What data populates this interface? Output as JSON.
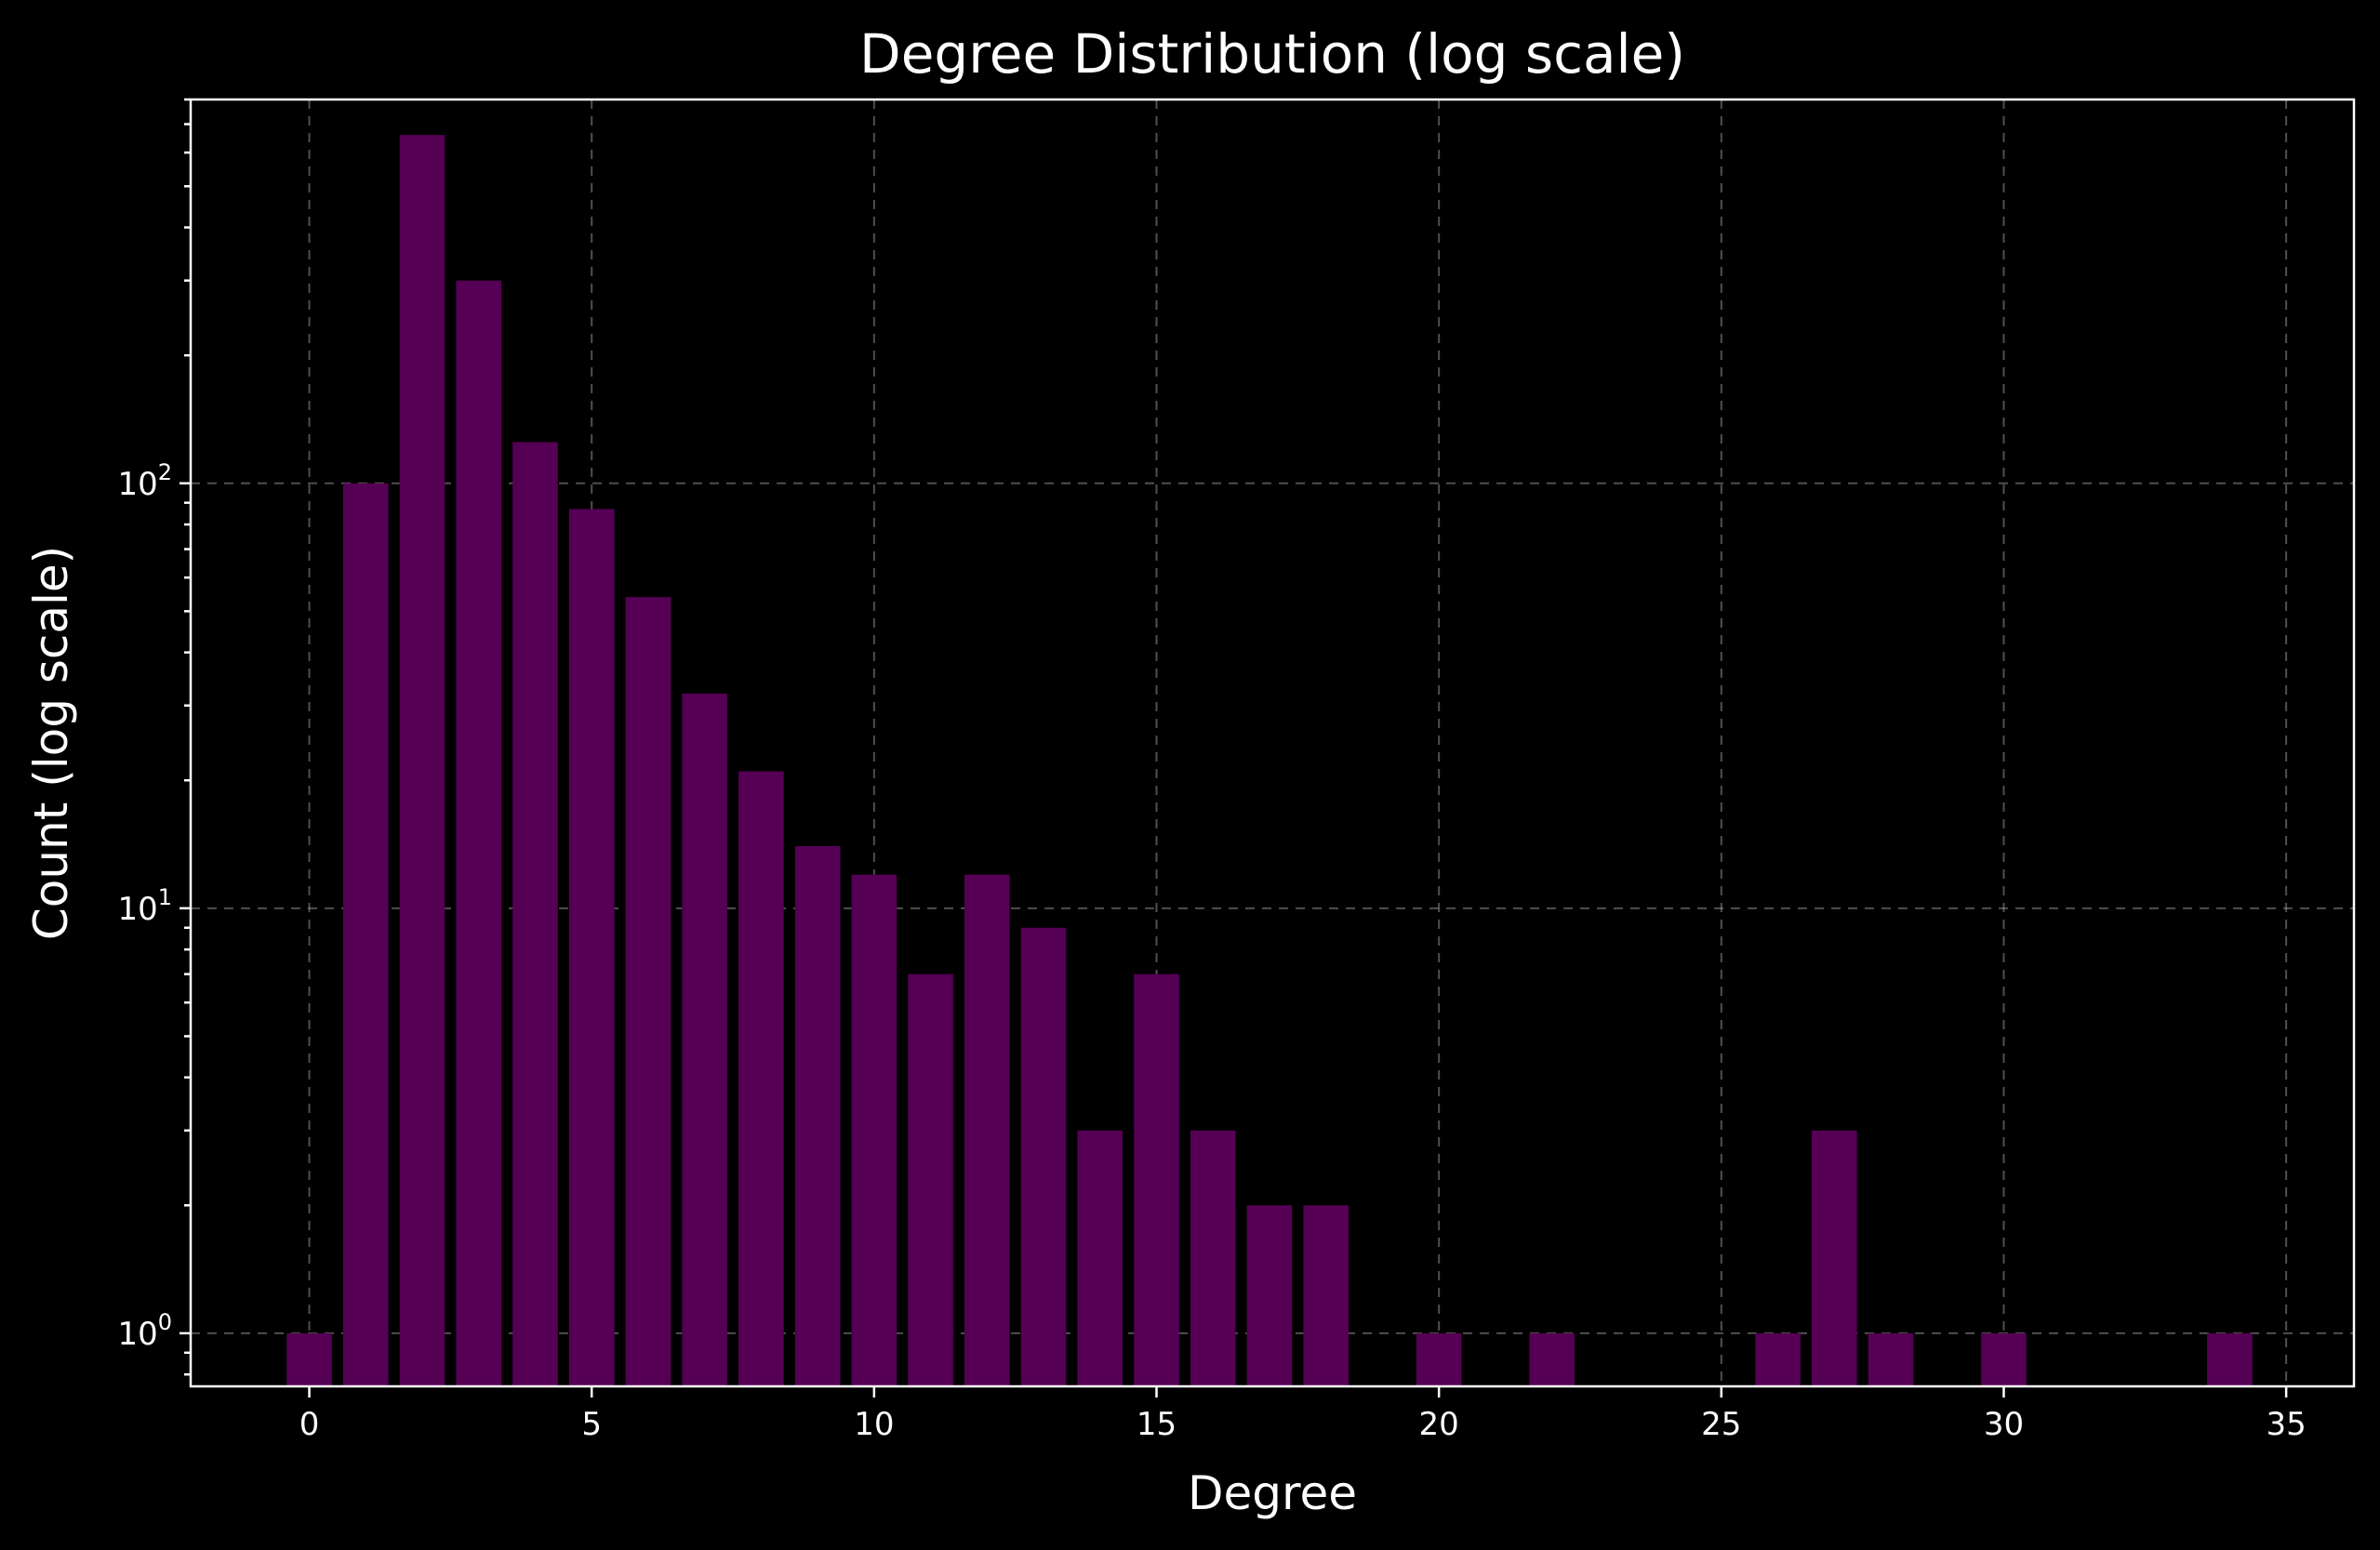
{
  "chart_data": {
    "type": "bar",
    "title": "Degree Distribution (log scale)",
    "xlabel": "Degree",
    "ylabel": "Count (log scale)",
    "yscale": "log",
    "xlim": [
      -2.1,
      36.2
    ],
    "ylim": [
      0.75,
      800
    ],
    "x_ticks": [
      0,
      5,
      10,
      15,
      20,
      25,
      30,
      35
    ],
    "x_tick_labels": [
      "0",
      "5",
      "10",
      "15",
      "20",
      "25",
      "30",
      "35"
    ],
    "y_ticks": [
      1,
      10,
      100
    ],
    "y_tick_labels": [
      {
        "base": "10",
        "exp": "0"
      },
      {
        "base": "10",
        "exp": "1"
      },
      {
        "base": "10",
        "exp": "2"
      }
    ],
    "grid": true,
    "bar_color": "#550055",
    "background": "#000000",
    "series": [
      {
        "x": [
          0,
          1,
          2,
          3,
          4,
          5,
          6,
          7,
          8,
          9,
          10,
          11,
          12,
          13,
          14,
          15,
          16,
          17,
          18,
          20,
          22,
          26,
          27,
          28,
          30,
          34
        ],
        "values": [
          1,
          100,
          660,
          300,
          125,
          87,
          54,
          32,
          21,
          14,
          12,
          7,
          12,
          9,
          3,
          7,
          3,
          2,
          2,
          1,
          1,
          1,
          3,
          1,
          1,
          1
        ]
      }
    ]
  }
}
